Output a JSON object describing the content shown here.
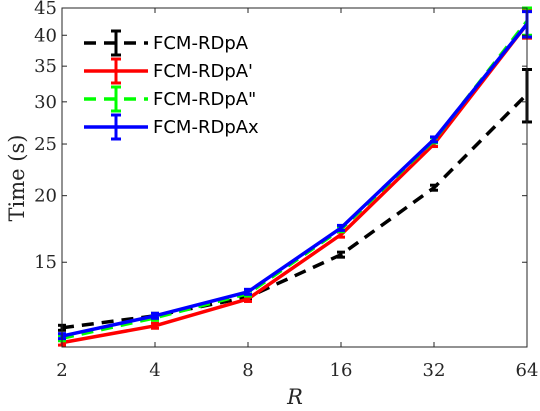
{
  "chart_data": {
    "type": "line",
    "x": [
      2,
      4,
      8,
      16,
      32,
      64
    ],
    "x_ticks": [
      2,
      4,
      8,
      16,
      32,
      64
    ],
    "x_tick_labels": [
      "2",
      "4",
      "8",
      "16",
      "32",
      "64"
    ],
    "xlabel": "R",
    "ylabel": "Time (s)",
    "y_ticks": [
      15,
      20,
      25,
      30,
      35,
      40,
      45
    ],
    "y_tick_labels": [
      "15",
      "20",
      "25",
      "30",
      "35",
      "40",
      "45"
    ],
    "xlim": [
      2,
      64
    ],
    "ylim": [
      10.4,
      45
    ],
    "x_scale": "log",
    "y_scale": "log",
    "grid": false,
    "legend_position": "top-left",
    "series": [
      {
        "name": "FCM-RDpA",
        "color": "#000000",
        "dash": "dashed",
        "values": [
          11.3,
          11.9,
          12.9,
          15.5,
          20.7,
          31.0
        ],
        "error": [
          0,
          0,
          0,
          0,
          0,
          3.5
        ]
      },
      {
        "name": "FCM-RDpA'",
        "color": "#ff0000",
        "dash": "solid",
        "values": [
          10.6,
          11.4,
          12.8,
          16.9,
          25.0,
          42.0
        ],
        "error": [
          0,
          0,
          0,
          0,
          0,
          2.5
        ]
      },
      {
        "name": "FCM-RDpA\"",
        "color": "#00ff00",
        "dash": "dashed",
        "values": [
          10.8,
          11.8,
          13.1,
          17.3,
          25.4,
          42.5
        ],
        "error": [
          0,
          0,
          0,
          0,
          0,
          2.5
        ]
      },
      {
        "name": "FCM-RDpAx",
        "color": "#0000ff",
        "dash": "solid",
        "values": [
          10.9,
          11.9,
          13.2,
          17.4,
          25.5,
          42.0
        ],
        "error": [
          0,
          0,
          0,
          0,
          0,
          2.3
        ]
      }
    ]
  }
}
